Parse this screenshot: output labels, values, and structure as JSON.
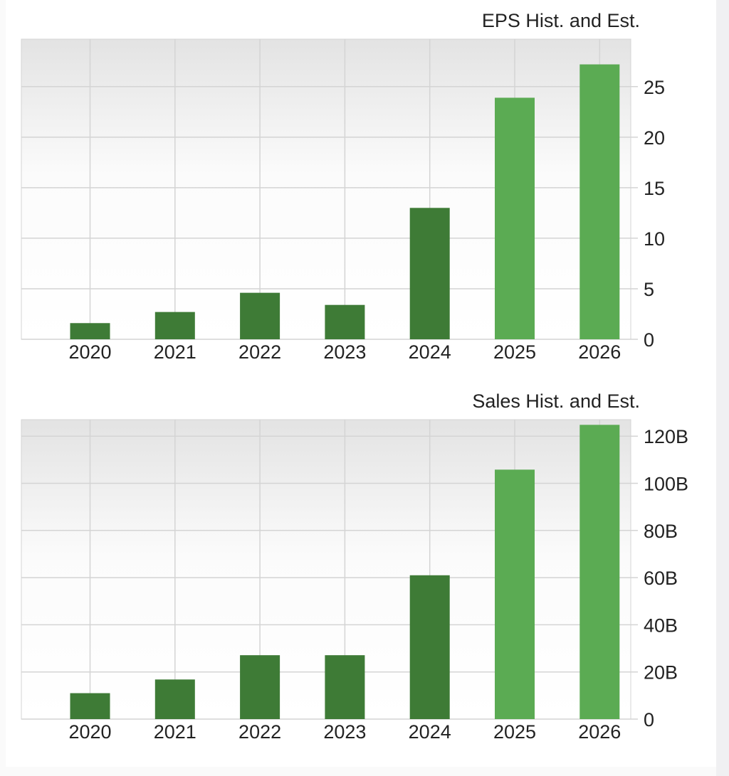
{
  "chart_data": [
    {
      "type": "bar",
      "title": "EPS Hist. and Est.",
      "categories": [
        "2020",
        "2021",
        "2022",
        "2023",
        "2024",
        "2025",
        "2026"
      ],
      "values": [
        1.6,
        2.7,
        4.6,
        3.4,
        13.0,
        23.9,
        27.2
      ],
      "estimate": [
        false,
        false,
        false,
        false,
        false,
        true,
        true
      ],
      "yticks": [
        0,
        5,
        10,
        15,
        20,
        25
      ],
      "ytick_labels": [
        "0",
        "5",
        "10",
        "15",
        "20",
        "25"
      ],
      "ylim": [
        0,
        29.7
      ],
      "xlabel": "",
      "ylabel": "",
      "grid": true
    },
    {
      "type": "bar",
      "title": "Sales Hist. and Est.",
      "categories": [
        "2020",
        "2021",
        "2022",
        "2023",
        "2024",
        "2025",
        "2026"
      ],
      "values": [
        11.0,
        16.8,
        27.1,
        27.1,
        61.0,
        105.8,
        124.8
      ],
      "unit": "B",
      "estimate": [
        false,
        false,
        false,
        false,
        false,
        true,
        true
      ],
      "yticks": [
        0,
        20,
        40,
        60,
        80,
        100,
        120
      ],
      "ytick_labels": [
        "0",
        "20B",
        "40B",
        "60B",
        "80B",
        "100B",
        "120B"
      ],
      "ylim": [
        0,
        127
      ],
      "xlabel": "",
      "ylabel": "",
      "grid": true
    }
  ],
  "colors": {
    "historical": "#3e7b36",
    "estimate": "#5bab53",
    "grid": "#d4d4d4"
  }
}
